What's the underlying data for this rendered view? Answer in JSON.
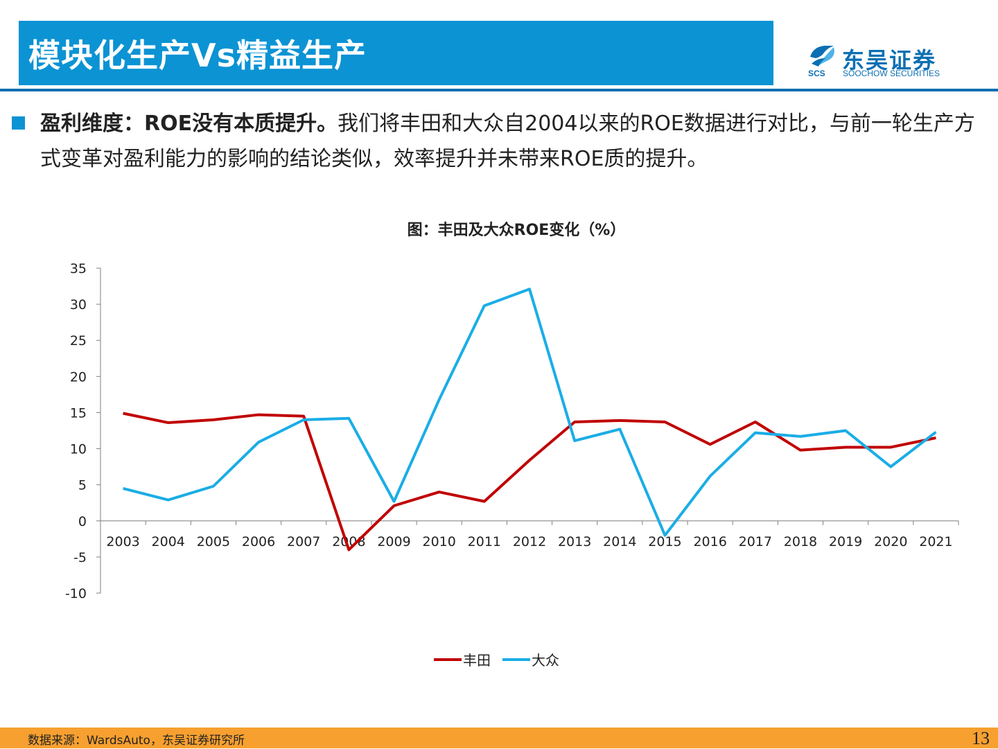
{
  "header": {
    "title": "模块化生产Vs精益生产",
    "logo_cn": "东吴证券",
    "logo_en": "SOOCHOW SECURITIES",
    "logo_mark_text": "SCS"
  },
  "body": {
    "bold_text": "盈利维度：ROE没有本质提升。",
    "text": "我们将丰田和大众自2004以来的ROE数据进行对比，与前一轮生产方式变革对盈利能力的影响的结论类似，效率提升并未带来ROE质的提升。"
  },
  "chart_data": {
    "type": "line",
    "title": "图：丰田及大众ROE变化（%）",
    "categories": [
      "2003",
      "2004",
      "2005",
      "2006",
      "2007",
      "2008",
      "2009",
      "2010",
      "2011",
      "2012",
      "2013",
      "2014",
      "2015",
      "2016",
      "2017",
      "2018",
      "2019",
      "2020",
      "2021"
    ],
    "series": [
      {
        "name": "丰田",
        "color": "#c00000",
        "values": [
          14.9,
          13.6,
          14.0,
          14.7,
          14.5,
          -4.0,
          2.1,
          4.0,
          2.7,
          8.4,
          13.7,
          13.9,
          13.7,
          10.6,
          13.7,
          9.8,
          10.2,
          10.2,
          11.5
        ]
      },
      {
        "name": "大众",
        "color": "#1aade6",
        "values": [
          4.5,
          2.9,
          4.8,
          10.9,
          14.0,
          14.2,
          2.7,
          16.8,
          29.8,
          32.1,
          11.1,
          12.7,
          -2.0,
          6.2,
          12.2,
          11.7,
          12.5,
          7.5,
          12.3
        ]
      }
    ],
    "yticks": [
      35,
      30,
      25,
      20,
      15,
      10,
      5,
      0,
      -5,
      -10
    ],
    "ylim": [
      -10,
      35
    ],
    "legend_position": "bottom"
  },
  "footer": {
    "source": "数据来源：WardsAuto，东吴证券研究所",
    "page": "13"
  }
}
